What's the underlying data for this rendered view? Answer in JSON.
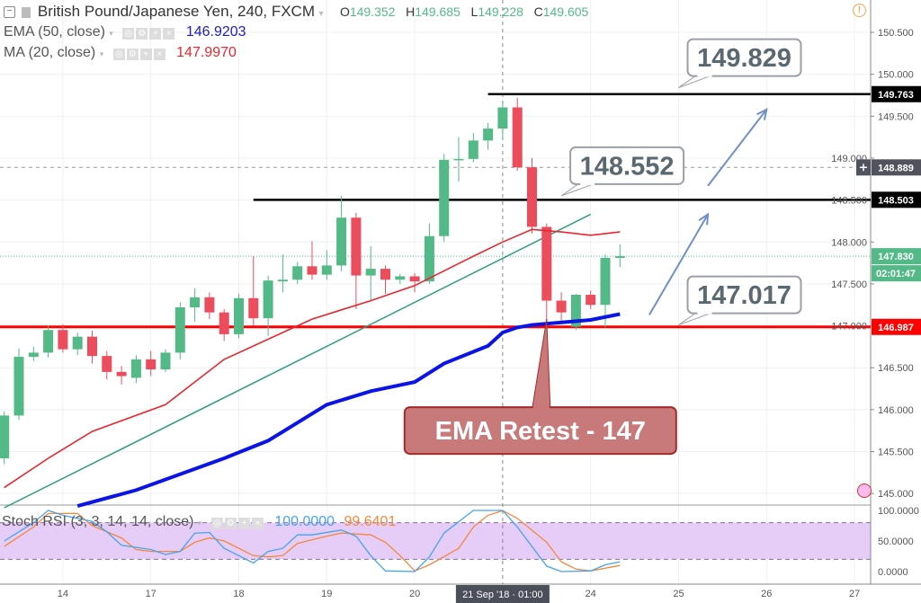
{
  "header": {
    "symbol": "British Pound/Japanese Yen, 240, FXCM",
    "ohlc": {
      "o_label": "O",
      "o": "149.352",
      "h_label": "H",
      "h": "149.685",
      "l_label": "L",
      "l": "149.228",
      "c_label": "C",
      "c": "149.605"
    },
    "ema": {
      "label": "EMA (50, close)",
      "value": "146.9203",
      "color": "#1c1cc8"
    },
    "ma": {
      "label": "MA (20, close)",
      "value": "147.9970",
      "color": "#e8262c"
    },
    "stoch": {
      "label": "Stoch RSI (3, 3, 14, 14, close)",
      "k": "100.0000",
      "d": "99.6401",
      "k_color": "#45a3f0",
      "d_color": "#f5873a"
    },
    "alert_icon": "exclamation-circle-icon"
  },
  "price_axis": {
    "ticks": [
      "150.500",
      "150.000",
      "149.500",
      "149.000",
      "148.500",
      "148.000",
      "147.500",
      "147.000",
      "146.500",
      "146.000",
      "145.500",
      "145.000"
    ],
    "badges": [
      {
        "text": "149.763",
        "price": 149.763,
        "color": "#000000"
      },
      {
        "text": "148.889",
        "price": 148.889,
        "color": "#50535e"
      },
      {
        "text": "148.503",
        "price": 148.503,
        "color": "#000000"
      },
      {
        "text": "147.830",
        "price": 147.83,
        "color": "#53b987"
      },
      {
        "text": "02:01:47",
        "price": 147.64,
        "color": "#53b987"
      },
      {
        "text": "146.987",
        "price": 146.987,
        "color": "#ff0000"
      }
    ]
  },
  "stoch_axis": {
    "ticks": [
      "100.0000",
      "50.0000",
      "0.0000"
    ]
  },
  "time_axis": {
    "ticks": [
      {
        "label": "14",
        "t": "2018-09-14 01:00"
      },
      {
        "label": "17",
        "t": "2018-09-17 01:00"
      },
      {
        "label": "18",
        "t": "2018-09-18 01:00"
      },
      {
        "label": "19",
        "t": "2018-09-19 01:00"
      },
      {
        "label": "20",
        "t": "2018-09-20 01:00"
      },
      {
        "label": "24",
        "t": "2018-09-24 01:00"
      },
      {
        "label": "25",
        "t": "2018-09-25 01:00"
      },
      {
        "label": "26",
        "t": "2018-09-26 01:00"
      },
      {
        "label": "27",
        "t": "2018-09-27 01:00"
      }
    ],
    "crosshair": {
      "label": "21 Sep '18 · 01:00",
      "t": "2018-09-21 01:00"
    }
  },
  "chart_data": {
    "type": "candlestick",
    "title": "British Pound/Japanese Yen, 240, FXCM",
    "ylim": [
      144.85,
      150.85
    ],
    "grid": true,
    "colors": {
      "up": "#53b987",
      "down": "#eb4d5c"
    },
    "candles": [
      [
        "2018-09-13 09:00",
        145.42,
        145.98,
        145.35,
        145.93
      ],
      [
        "2018-09-13 13:00",
        145.93,
        146.73,
        145.88,
        146.63
      ],
      [
        "2018-09-13 17:00",
        146.63,
        146.75,
        146.58,
        146.68
      ],
      [
        "2018-09-13 21:00",
        146.68,
        147.0,
        146.62,
        146.95
      ],
      [
        "2018-09-14 01:00",
        146.95,
        147.02,
        146.68,
        146.72
      ],
      [
        "2018-09-14 05:00",
        146.72,
        146.92,
        146.65,
        146.87
      ],
      [
        "2018-09-14 09:00",
        146.87,
        146.94,
        146.55,
        146.64
      ],
      [
        "2018-09-14 13:00",
        146.64,
        146.7,
        146.36,
        146.45
      ],
      [
        "2018-09-14 17:00",
        146.45,
        146.52,
        146.3,
        146.4
      ],
      [
        "2018-09-14 21:00",
        146.38,
        146.65,
        146.32,
        146.6
      ],
      [
        "2018-09-17 01:00",
        146.6,
        146.7,
        146.4,
        146.48
      ],
      [
        "2018-09-17 05:00",
        146.48,
        146.72,
        146.45,
        146.68
      ],
      [
        "2018-09-17 09:00",
        146.68,
        147.28,
        146.6,
        147.22
      ],
      [
        "2018-09-17 13:00",
        147.22,
        147.45,
        147.05,
        147.34
      ],
      [
        "2018-09-17 17:00",
        147.34,
        147.4,
        147.08,
        147.16
      ],
      [
        "2018-09-17 21:00",
        147.16,
        147.2,
        146.82,
        146.9
      ],
      [
        "2018-09-18 01:00",
        146.9,
        147.38,
        146.85,
        147.33
      ],
      [
        "2018-09-18 05:00",
        147.33,
        147.83,
        147.0,
        147.09
      ],
      [
        "2018-09-18 09:00",
        147.09,
        147.6,
        146.88,
        147.54
      ],
      [
        "2018-09-18 13:00",
        147.53,
        147.85,
        147.4,
        147.55
      ],
      [
        "2018-09-18 17:00",
        147.55,
        147.76,
        147.5,
        147.71
      ],
      [
        "2018-09-18 21:00",
        147.71,
        148.01,
        147.55,
        147.61
      ],
      [
        "2018-09-19 01:00",
        147.61,
        147.9,
        147.55,
        147.72
      ],
      [
        "2018-09-19 05:00",
        147.72,
        148.55,
        147.65,
        148.29
      ],
      [
        "2018-09-19 09:00",
        148.29,
        148.35,
        147.2,
        147.6
      ],
      [
        "2018-09-19 13:00",
        147.6,
        147.95,
        147.3,
        147.68
      ],
      [
        "2018-09-19 17:00",
        147.68,
        147.72,
        147.38,
        147.55
      ],
      [
        "2018-09-19 21:00",
        147.55,
        147.62,
        147.5,
        147.59
      ],
      [
        "2018-09-20 01:00",
        147.59,
        147.63,
        147.4,
        147.53
      ],
      [
        "2018-09-20 05:00",
        147.53,
        148.22,
        147.5,
        148.07
      ],
      [
        "2018-09-20 09:00",
        148.07,
        149.05,
        148.0,
        148.98
      ],
      [
        "2018-09-20 13:00",
        148.98,
        149.25,
        148.72,
        148.99
      ],
      [
        "2018-09-20 17:00",
        148.99,
        149.3,
        148.95,
        149.21
      ],
      [
        "2018-09-20 21:00",
        149.21,
        149.42,
        149.1,
        149.352
      ],
      [
        "2018-09-21 01:00",
        149.352,
        149.685,
        149.228,
        149.605
      ],
      [
        "2018-09-21 05:00",
        149.605,
        149.72,
        148.85,
        148.89
      ],
      [
        "2018-09-21 09:00",
        148.89,
        149.0,
        148.1,
        148.18
      ],
      [
        "2018-09-21 13:00",
        148.18,
        148.22,
        147.05,
        147.3
      ],
      [
        "2018-09-21 17:00",
        147.3,
        147.4,
        147.03,
        147.16
      ],
      [
        "2018-09-21 21:00",
        146.99,
        147.38,
        146.95,
        147.37
      ],
      [
        "2018-09-24 01:00",
        147.37,
        147.42,
        147.2,
        147.25
      ],
      [
        "2018-09-24 05:00",
        147.25,
        147.85,
        146.98,
        147.81
      ],
      [
        "2018-09-24 09:00",
        147.81,
        147.97,
        147.7,
        147.83
      ]
    ],
    "indicators": {
      "ema50": [
        [
          5,
          144.85
        ],
        [
          9,
          145.04
        ],
        [
          15,
          145.42
        ],
        [
          18,
          145.63
        ],
        [
          22,
          146.06
        ],
        [
          25,
          146.22
        ],
        [
          28,
          146.33
        ],
        [
          30,
          146.55
        ],
        [
          33,
          146.76
        ],
        [
          34,
          146.92
        ],
        [
          35,
          146.98
        ],
        [
          36,
          147.01
        ],
        [
          40,
          147.07
        ],
        [
          42,
          147.14
        ]
      ],
      "ma20": [
        [
          0,
          145.07
        ],
        [
          3,
          145.42
        ],
        [
          6,
          145.74
        ],
        [
          11,
          146.06
        ],
        [
          15,
          146.6
        ],
        [
          19,
          146.92
        ],
        [
          21,
          147.08
        ],
        [
          23,
          147.19
        ],
        [
          25,
          147.3
        ],
        [
          28,
          147.48
        ],
        [
          32,
          147.83
        ],
        [
          34,
          148.0
        ],
        [
          36,
          148.15
        ],
        [
          38,
          148.12
        ],
        [
          40,
          148.08
        ],
        [
          42,
          148.12
        ]
      ],
      "stoch_k": [
        [
          0,
          50
        ],
        [
          2,
          80
        ],
        [
          3,
          100
        ],
        [
          4,
          92
        ],
        [
          6,
          82
        ],
        [
          7,
          65
        ],
        [
          8,
          43
        ],
        [
          10,
          36
        ],
        [
          11,
          28
        ],
        [
          12,
          33
        ],
        [
          13,
          63
        ],
        [
          14,
          64
        ],
        [
          15,
          38
        ],
        [
          16,
          26
        ],
        [
          17,
          14
        ],
        [
          18,
          33
        ],
        [
          19,
          38
        ],
        [
          20,
          60
        ],
        [
          21,
          60
        ],
        [
          23,
          68
        ],
        [
          24,
          58
        ],
        [
          25,
          26
        ],
        [
          26,
          1
        ],
        [
          28,
          0
        ],
        [
          29,
          24
        ],
        [
          30,
          63
        ],
        [
          32,
          100
        ],
        [
          34,
          100
        ],
        [
          35,
          73
        ],
        [
          37,
          9
        ],
        [
          38,
          0
        ],
        [
          40,
          1
        ],
        [
          41,
          11
        ],
        [
          42,
          16
        ]
      ],
      "stoch_d": [
        [
          0,
          41
        ],
        [
          2,
          73
        ],
        [
          3,
          95
        ],
        [
          5,
          95
        ],
        [
          6,
          75
        ],
        [
          8,
          55
        ],
        [
          9,
          36
        ],
        [
          10,
          33
        ],
        [
          12,
          33
        ],
        [
          13,
          48
        ],
        [
          14,
          55
        ],
        [
          15,
          50
        ],
        [
          17,
          26
        ],
        [
          18,
          24
        ],
        [
          19,
          26
        ],
        [
          20,
          46
        ],
        [
          22,
          58
        ],
        [
          23,
          63
        ],
        [
          25,
          60
        ],
        [
          26,
          48
        ],
        [
          27,
          26
        ],
        [
          28,
          1
        ],
        [
          29,
          11
        ],
        [
          31,
          38
        ],
        [
          32,
          73
        ],
        [
          33,
          92
        ],
        [
          34,
          99.64
        ],
        [
          35,
          87
        ],
        [
          37,
          48
        ],
        [
          38,
          16
        ],
        [
          39,
          4
        ],
        [
          40,
          1
        ],
        [
          42,
          10
        ]
      ],
      "stoch_bands": [
        20,
        80
      ]
    },
    "drawings": {
      "hlines": [
        {
          "price": 149.763,
          "from": "2018-09-20 21:00",
          "color": "#000000"
        },
        {
          "price": 148.503,
          "from": "2018-09-18 05:00",
          "color": "#000000"
        },
        {
          "price": 146.987,
          "from": null,
          "color": "#ff0000"
        }
      ],
      "trendline": {
        "from": [
          "2018-09-13 09:00",
          144.83
        ],
        "to": [
          "2018-09-24 01:00",
          148.33
        ],
        "color": "#2a9d80"
      },
      "arrows": [
        {
          "from": [
            "2018-09-24 17:00",
            147.13
          ],
          "to": [
            "2018-09-25 09:00",
            148.33
          ]
        },
        {
          "from": [
            "2018-09-25 09:00",
            148.67
          ],
          "to": [
            "2018-09-26 01:00",
            149.58
          ]
        }
      ],
      "callouts": [
        {
          "text": "149.829",
          "at": [
            "2018-09-25 01:00",
            149.84
          ],
          "style": "gray"
        },
        {
          "text": "148.552",
          "at": [
            "2018-09-21 17:00",
            148.55
          ],
          "style": "gray"
        },
        {
          "text": "147.017",
          "at": [
            "2018-09-25 01:00",
            147.01
          ],
          "style": "gray"
        },
        {
          "text": "EMA Retest - 147",
          "at": [
            "2018-09-21 13:00",
            147.08
          ],
          "style": "red"
        }
      ]
    }
  }
}
